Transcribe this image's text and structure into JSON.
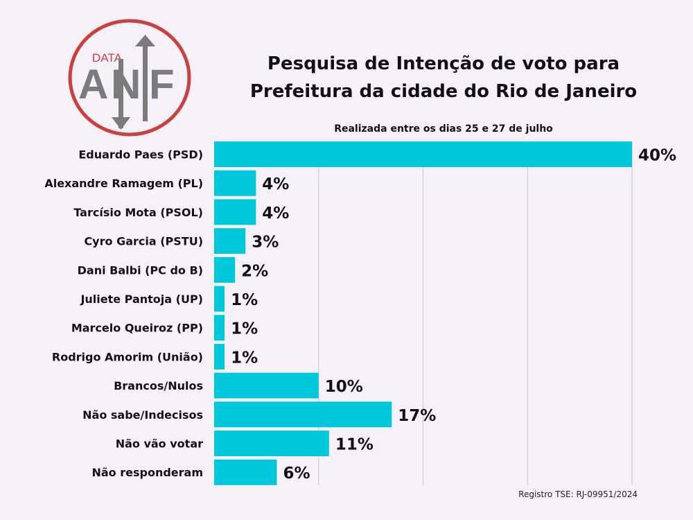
{
  "logo": {
    "small_text": "DATA",
    "big_text": "ANF"
  },
  "footer": "Registro TSE: RJ-09951/2024",
  "chart_data": {
    "type": "bar",
    "orientation": "horizontal",
    "title": "Pesquisa de Intenção de voto para Prefeitura da cidade do Rio de Janeiro",
    "title_lines": [
      "Pesquisa de Intenção de voto para",
      "Prefeitura da cidade do Rio de Janeiro"
    ],
    "subtitle": "Realizada entre os dias 25 e 27 de julho",
    "categories": [
      "Eduardo Paes (PSD)",
      "Alexandre Ramagem (PL)",
      "Tarcísio Mota (PSOL)",
      "Cyro Garcia (PSTU)",
      "Dani Balbi (PC do B)",
      "Juliete Pantoja (UP)",
      "Marcelo Queiroz (PP)",
      "Rodrigo Amorim (União)",
      "Brancos/Nulos",
      "Não sabe/Indecisos",
      "Não vão votar",
      "Não responderam"
    ],
    "values": [
      40,
      4,
      4,
      3,
      2,
      1,
      1,
      1,
      10,
      17,
      11,
      6
    ],
    "value_suffix": "%",
    "xlim": [
      0,
      40
    ],
    "gridlines": [
      10,
      20,
      30,
      40
    ],
    "bar_color": "#00c8da",
    "grid": true
  }
}
